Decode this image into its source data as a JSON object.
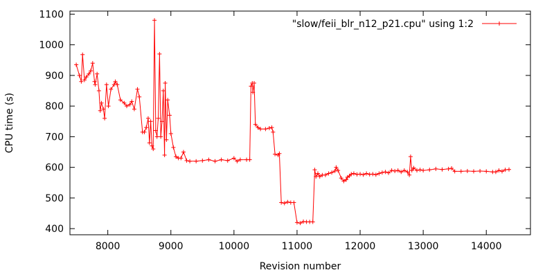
{
  "chart_data": {
    "type": "line",
    "title": "",
    "xlabel": "Revision number",
    "ylabel": "CPU time (s)",
    "xlim": [
      7400,
      14700
    ],
    "ylim": [
      380,
      1110
    ],
    "x_ticks": [
      8000,
      9000,
      10000,
      11000,
      12000,
      13000,
      14000
    ],
    "y_ticks": [
      400,
      500,
      600,
      700,
      800,
      900,
      1000,
      1100
    ],
    "x_tick_labels": [
      "8000",
      "9000",
      "10000",
      "11000",
      "12000",
      "13000",
      "14000"
    ],
    "y_tick_labels": [
      "400",
      "500",
      "600",
      "700",
      "800",
      "900",
      "1000",
      "1100"
    ],
    "grid": false,
    "legend_position": "top-right",
    "series_color": "#ff0000",
    "series": [
      {
        "name": "\"slow/feii_blr_n12_p21.cpu\" using 1:2",
        "points": [
          [
            7500,
            935
          ],
          [
            7550,
            900
          ],
          [
            7580,
            880
          ],
          [
            7600,
            968
          ],
          [
            7630,
            885
          ],
          [
            7660,
            895
          ],
          [
            7700,
            905
          ],
          [
            7730,
            915
          ],
          [
            7760,
            940
          ],
          [
            7790,
            880
          ],
          [
            7800,
            870
          ],
          [
            7830,
            905
          ],
          [
            7860,
            850
          ],
          [
            7880,
            785
          ],
          [
            7900,
            810
          ],
          [
            7930,
            790
          ],
          [
            7950,
            760
          ],
          [
            7980,
            870
          ],
          [
            8010,
            800
          ],
          [
            8050,
            855
          ],
          [
            8100,
            870
          ],
          [
            8120,
            880
          ],
          [
            8150,
            870
          ],
          [
            8200,
            820
          ],
          [
            8260,
            810
          ],
          [
            8300,
            800
          ],
          [
            8350,
            805
          ],
          [
            8380,
            815
          ],
          [
            8420,
            790
          ],
          [
            8470,
            855
          ],
          [
            8500,
            830
          ],
          [
            8550,
            715
          ],
          [
            8580,
            715
          ],
          [
            8610,
            730
          ],
          [
            8640,
            760
          ],
          [
            8660,
            680
          ],
          [
            8680,
            750
          ],
          [
            8700,
            670
          ],
          [
            8720,
            660
          ],
          [
            8740,
            1080
          ],
          [
            8760,
            720
          ],
          [
            8780,
            700
          ],
          [
            8800,
            760
          ],
          [
            8820,
            970
          ],
          [
            8840,
            700
          ],
          [
            8860,
            750
          ],
          [
            8880,
            850
          ],
          [
            8900,
            640
          ],
          [
            8910,
            875
          ],
          [
            8930,
            690
          ],
          [
            8950,
            820
          ],
          [
            8980,
            770
          ],
          [
            9000,
            710
          ],
          [
            9040,
            665
          ],
          [
            9080,
            635
          ],
          [
            9120,
            630
          ],
          [
            9160,
            630
          ],
          [
            9200,
            650
          ],
          [
            9250,
            622
          ],
          [
            9300,
            620
          ],
          [
            9400,
            620
          ],
          [
            9500,
            622
          ],
          [
            9600,
            625
          ],
          [
            9700,
            620
          ],
          [
            9800,
            625
          ],
          [
            9900,
            622
          ],
          [
            10000,
            630
          ],
          [
            10050,
            620
          ],
          [
            10100,
            625
          ],
          [
            10200,
            625
          ],
          [
            10250,
            625
          ],
          [
            10270,
            865
          ],
          [
            10290,
            875
          ],
          [
            10300,
            845
          ],
          [
            10320,
            875
          ],
          [
            10340,
            740
          ],
          [
            10380,
            730
          ],
          [
            10420,
            725
          ],
          [
            10500,
            725
          ],
          [
            10560,
            728
          ],
          [
            10600,
            730
          ],
          [
            10620,
            715
          ],
          [
            10650,
            643
          ],
          [
            10700,
            640
          ],
          [
            10720,
            645
          ],
          [
            10750,
            485
          ],
          [
            10800,
            483
          ],
          [
            10850,
            487
          ],
          [
            10900,
            485
          ],
          [
            10950,
            485
          ],
          [
            11000,
            420
          ],
          [
            11050,
            418
          ],
          [
            11100,
            423
          ],
          [
            11150,
            422
          ],
          [
            11200,
            422
          ],
          [
            11250,
            422
          ],
          [
            11280,
            592
          ],
          [
            11300,
            570
          ],
          [
            11330,
            580
          ],
          [
            11360,
            570
          ],
          [
            11400,
            575
          ],
          [
            11450,
            575
          ],
          [
            11500,
            580
          ],
          [
            11550,
            583
          ],
          [
            11600,
            588
          ],
          [
            11620,
            600
          ],
          [
            11650,
            590
          ],
          [
            11700,
            565
          ],
          [
            11740,
            555
          ],
          [
            11780,
            560
          ],
          [
            11800,
            568
          ],
          [
            11830,
            572
          ],
          [
            11860,
            578
          ],
          [
            11900,
            580
          ],
          [
            11950,
            577
          ],
          [
            12000,
            578
          ],
          [
            12050,
            576
          ],
          [
            12100,
            580
          ],
          [
            12150,
            577
          ],
          [
            12200,
            578
          ],
          [
            12250,
            576
          ],
          [
            12300,
            580
          ],
          [
            12350,
            583
          ],
          [
            12400,
            585
          ],
          [
            12450,
            582
          ],
          [
            12500,
            590
          ],
          [
            12550,
            588
          ],
          [
            12600,
            590
          ],
          [
            12650,
            585
          ],
          [
            12700,
            590
          ],
          [
            12750,
            585
          ],
          [
            12780,
            575
          ],
          [
            12800,
            635
          ],
          [
            12820,
            590
          ],
          [
            12850,
            598
          ],
          [
            12900,
            590
          ],
          [
            12950,
            592
          ],
          [
            13000,
            590
          ],
          [
            13100,
            592
          ],
          [
            13200,
            595
          ],
          [
            13300,
            593
          ],
          [
            13400,
            595
          ],
          [
            13450,
            597
          ],
          [
            13500,
            587
          ],
          [
            13600,
            587
          ],
          [
            13700,
            588
          ],
          [
            13800,
            587
          ],
          [
            13900,
            588
          ],
          [
            14000,
            587
          ],
          [
            14100,
            585
          ],
          [
            14150,
            585
          ],
          [
            14200,
            590
          ],
          [
            14250,
            587
          ],
          [
            14300,
            592
          ],
          [
            14360,
            593
          ]
        ]
      }
    ]
  }
}
